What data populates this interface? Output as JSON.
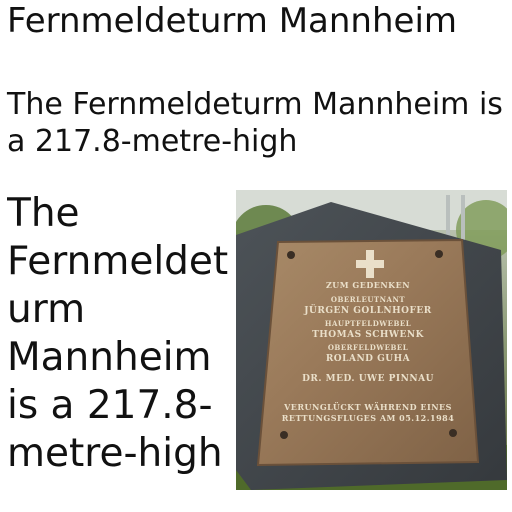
{
  "title": "Fernmeldeturm Mannheim",
  "subtitle": "The Fernmeldeturm Mannheim is a 217.8-metre-high",
  "body_text": "The Fernmeldeturm Mannheim is a 217.8-metre-high",
  "photo": {
    "plaque": {
      "line1": "ZUM GEDENKEN",
      "line2": "OBERLEUTNANT",
      "line3": "JÜRGEN GOLLNHOFER",
      "line4": "HAUPTFELDWEBEL",
      "line5": "THOMAS SCHWENK",
      "line6": "OBERFELDWEBEL",
      "line7": "ROLAND GUHA",
      "line8": "DR. MED. UWE PINNAU",
      "line9": "VERUNGLÜCKT WÄHREND EINES",
      "line10": "RETTUNGSFLUGES AM 05.12.1984"
    }
  }
}
